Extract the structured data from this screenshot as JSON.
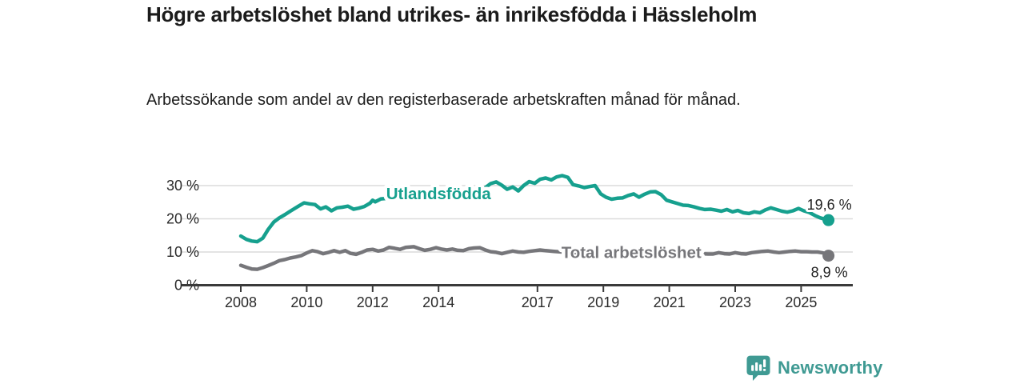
{
  "chart_data": {
    "type": "line",
    "title": "Högre arbetslöshet bland utrikes- än inrikesfödda i Hässleholm",
    "subtitle": "Arbetssökande som andel av den registerbaserade arbetskraften månad för månad.",
    "x_ticks": [
      2008,
      2010,
      2012,
      2014,
      2017,
      2019,
      2021,
      2023,
      2025
    ],
    "y_ticks": [
      0,
      10,
      20,
      30
    ],
    "y_tick_suffix": " %",
    "ylim": [
      0,
      35
    ],
    "x_data_range": [
      2008,
      2025.83
    ],
    "grid": "horizontal-only",
    "legend_position": "inline-labels",
    "axis_color": "#3a3a3a",
    "gridline_color": "#dcdcdc",
    "tick_label_color": "#2b2b2b",
    "value_label_color": "#1f1f1f",
    "series": [
      {
        "name": "Utlandsfödda",
        "color": "#16a08e",
        "end_value": 19.6,
        "end_label": "19,6 %",
        "end_label_side": "above",
        "label_at": [
          2014.0,
          27.6
        ],
        "points": [
          [
            2008.0,
            14.8
          ],
          [
            2008.17,
            13.8
          ],
          [
            2008.33,
            13.3
          ],
          [
            2008.5,
            13.1
          ],
          [
            2008.67,
            14.2
          ],
          [
            2008.83,
            16.8
          ],
          [
            2009.0,
            19.0
          ],
          [
            2009.17,
            20.3
          ],
          [
            2009.33,
            21.2
          ],
          [
            2009.5,
            22.3
          ],
          [
            2009.75,
            23.8
          ],
          [
            2009.92,
            24.8
          ],
          [
            2010.08,
            24.5
          ],
          [
            2010.25,
            24.3
          ],
          [
            2010.42,
            23.0
          ],
          [
            2010.58,
            23.6
          ],
          [
            2010.75,
            22.4
          ],
          [
            2010.92,
            23.3
          ],
          [
            2011.08,
            23.5
          ],
          [
            2011.25,
            23.8
          ],
          [
            2011.42,
            22.9
          ],
          [
            2011.58,
            23.2
          ],
          [
            2011.75,
            23.7
          ],
          [
            2011.92,
            24.7
          ],
          [
            2012.0,
            25.6
          ],
          [
            2012.08,
            25.1
          ],
          [
            2012.25,
            26.0
          ],
          [
            2012.5,
            26.2
          ],
          [
            2012.75,
            26.7
          ],
          [
            2013.0,
            27.1
          ],
          [
            2013.25,
            26.9
          ],
          [
            2013.5,
            27.4
          ],
          [
            2013.75,
            27.7
          ],
          [
            2014.0,
            27.9
          ],
          [
            2014.25,
            28.2
          ],
          [
            2014.5,
            28.0
          ],
          [
            2014.75,
            28.4
          ],
          [
            2015.0,
            28.7
          ],
          [
            2015.25,
            29.0
          ],
          [
            2015.42,
            29.4
          ],
          [
            2015.58,
            30.6
          ],
          [
            2015.75,
            31.1
          ],
          [
            2015.92,
            30.1
          ],
          [
            2016.08,
            28.9
          ],
          [
            2016.25,
            29.6
          ],
          [
            2016.42,
            28.4
          ],
          [
            2016.58,
            30.0
          ],
          [
            2016.75,
            31.2
          ],
          [
            2016.92,
            30.7
          ],
          [
            2017.08,
            31.9
          ],
          [
            2017.25,
            32.3
          ],
          [
            2017.42,
            31.7
          ],
          [
            2017.58,
            32.6
          ],
          [
            2017.75,
            33.0
          ],
          [
            2017.92,
            32.5
          ],
          [
            2018.08,
            30.3
          ],
          [
            2018.25,
            29.9
          ],
          [
            2018.42,
            29.4
          ],
          [
            2018.58,
            29.7
          ],
          [
            2018.75,
            30.0
          ],
          [
            2018.92,
            27.5
          ],
          [
            2019.08,
            26.5
          ],
          [
            2019.25,
            25.9
          ],
          [
            2019.42,
            26.2
          ],
          [
            2019.58,
            26.3
          ],
          [
            2019.75,
            27.0
          ],
          [
            2019.92,
            27.5
          ],
          [
            2020.08,
            26.5
          ],
          [
            2020.25,
            27.4
          ],
          [
            2020.42,
            28.1
          ],
          [
            2020.58,
            28.2
          ],
          [
            2020.75,
            27.3
          ],
          [
            2020.92,
            25.6
          ],
          [
            2021.08,
            25.1
          ],
          [
            2021.25,
            24.6
          ],
          [
            2021.42,
            24.1
          ],
          [
            2021.58,
            24.0
          ],
          [
            2021.75,
            23.6
          ],
          [
            2021.92,
            23.1
          ],
          [
            2022.08,
            22.8
          ],
          [
            2022.25,
            22.9
          ],
          [
            2022.42,
            22.6
          ],
          [
            2022.58,
            22.3
          ],
          [
            2022.75,
            22.8
          ],
          [
            2022.92,
            22.1
          ],
          [
            2023.08,
            22.5
          ],
          [
            2023.25,
            21.8
          ],
          [
            2023.42,
            21.6
          ],
          [
            2023.58,
            22.1
          ],
          [
            2023.75,
            21.8
          ],
          [
            2023.92,
            22.7
          ],
          [
            2024.08,
            23.3
          ],
          [
            2024.25,
            22.8
          ],
          [
            2024.42,
            22.3
          ],
          [
            2024.58,
            22.0
          ],
          [
            2024.75,
            22.4
          ],
          [
            2024.92,
            23.1
          ],
          [
            2025.08,
            22.4
          ],
          [
            2025.25,
            21.9
          ],
          [
            2025.42,
            21.0
          ],
          [
            2025.58,
            20.3
          ],
          [
            2025.75,
            19.8
          ],
          [
            2025.83,
            19.6
          ]
        ]
      },
      {
        "name": "Total arbetslöshet",
        "color": "#76767a",
        "end_value": 8.9,
        "end_label": "8,9 %",
        "end_label_side": "below",
        "label_at": [
          2019.85,
          9.9
        ],
        "points": [
          [
            2008.0,
            6.0
          ],
          [
            2008.17,
            5.4
          ],
          [
            2008.33,
            4.9
          ],
          [
            2008.5,
            4.8
          ],
          [
            2008.67,
            5.3
          ],
          [
            2008.83,
            5.9
          ],
          [
            2009.0,
            6.6
          ],
          [
            2009.17,
            7.4
          ],
          [
            2009.33,
            7.7
          ],
          [
            2009.5,
            8.2
          ],
          [
            2009.67,
            8.5
          ],
          [
            2009.83,
            8.9
          ],
          [
            2010.0,
            9.7
          ],
          [
            2010.17,
            10.4
          ],
          [
            2010.33,
            10.1
          ],
          [
            2010.5,
            9.5
          ],
          [
            2010.67,
            9.9
          ],
          [
            2010.83,
            10.4
          ],
          [
            2011.0,
            9.9
          ],
          [
            2011.17,
            10.4
          ],
          [
            2011.33,
            9.6
          ],
          [
            2011.5,
            9.3
          ],
          [
            2011.67,
            9.9
          ],
          [
            2011.83,
            10.6
          ],
          [
            2012.0,
            10.8
          ],
          [
            2012.17,
            10.3
          ],
          [
            2012.33,
            10.6
          ],
          [
            2012.5,
            11.4
          ],
          [
            2012.67,
            11.1
          ],
          [
            2012.83,
            10.8
          ],
          [
            2013.0,
            11.4
          ],
          [
            2013.25,
            11.6
          ],
          [
            2013.42,
            11.0
          ],
          [
            2013.58,
            10.5
          ],
          [
            2013.75,
            10.8
          ],
          [
            2013.92,
            11.3
          ],
          [
            2014.08,
            10.9
          ],
          [
            2014.25,
            10.6
          ],
          [
            2014.42,
            10.9
          ],
          [
            2014.58,
            10.5
          ],
          [
            2014.75,
            10.4
          ],
          [
            2014.92,
            11.0
          ],
          [
            2015.08,
            11.2
          ],
          [
            2015.25,
            11.3
          ],
          [
            2015.42,
            10.6
          ],
          [
            2015.58,
            10.1
          ],
          [
            2015.75,
            9.9
          ],
          [
            2015.92,
            9.5
          ],
          [
            2016.08,
            9.9
          ],
          [
            2016.25,
            10.3
          ],
          [
            2016.42,
            10.0
          ],
          [
            2016.58,
            9.9
          ],
          [
            2016.75,
            10.2
          ],
          [
            2016.92,
            10.4
          ],
          [
            2017.08,
            10.6
          ],
          [
            2017.25,
            10.4
          ],
          [
            2017.5,
            10.2
          ],
          [
            2017.75,
            10.0
          ],
          [
            2018.0,
            9.8
          ],
          [
            2018.25,
            9.6
          ],
          [
            2018.5,
            9.7
          ],
          [
            2018.75,
            9.5
          ],
          [
            2019.0,
            9.3
          ],
          [
            2019.25,
            9.2
          ],
          [
            2019.5,
            9.4
          ],
          [
            2019.75,
            9.3
          ],
          [
            2020.0,
            9.6
          ],
          [
            2020.25,
            10.3
          ],
          [
            2020.5,
            10.7
          ],
          [
            2020.75,
            10.4
          ],
          [
            2021.0,
            10.2
          ],
          [
            2021.25,
            10.0
          ],
          [
            2021.5,
            9.8
          ],
          [
            2021.75,
            9.6
          ],
          [
            2022.0,
            9.5
          ],
          [
            2022.17,
            9.4
          ],
          [
            2022.33,
            9.4
          ],
          [
            2022.5,
            9.8
          ],
          [
            2022.67,
            9.5
          ],
          [
            2022.83,
            9.4
          ],
          [
            2023.0,
            9.8
          ],
          [
            2023.17,
            9.5
          ],
          [
            2023.33,
            9.4
          ],
          [
            2023.5,
            9.8
          ],
          [
            2023.67,
            10.0
          ],
          [
            2023.83,
            10.2
          ],
          [
            2024.0,
            10.3
          ],
          [
            2024.17,
            10.0
          ],
          [
            2024.33,
            9.8
          ],
          [
            2024.5,
            10.0
          ],
          [
            2024.67,
            10.2
          ],
          [
            2024.83,
            10.3
          ],
          [
            2025.0,
            10.1
          ],
          [
            2025.17,
            10.1
          ],
          [
            2025.33,
            10.0
          ],
          [
            2025.5,
            10.0
          ],
          [
            2025.67,
            9.7
          ],
          [
            2025.83,
            8.9
          ]
        ]
      }
    ]
  },
  "footer": {
    "brand": "Newsworthy",
    "brand_color": "#3f9a93"
  }
}
